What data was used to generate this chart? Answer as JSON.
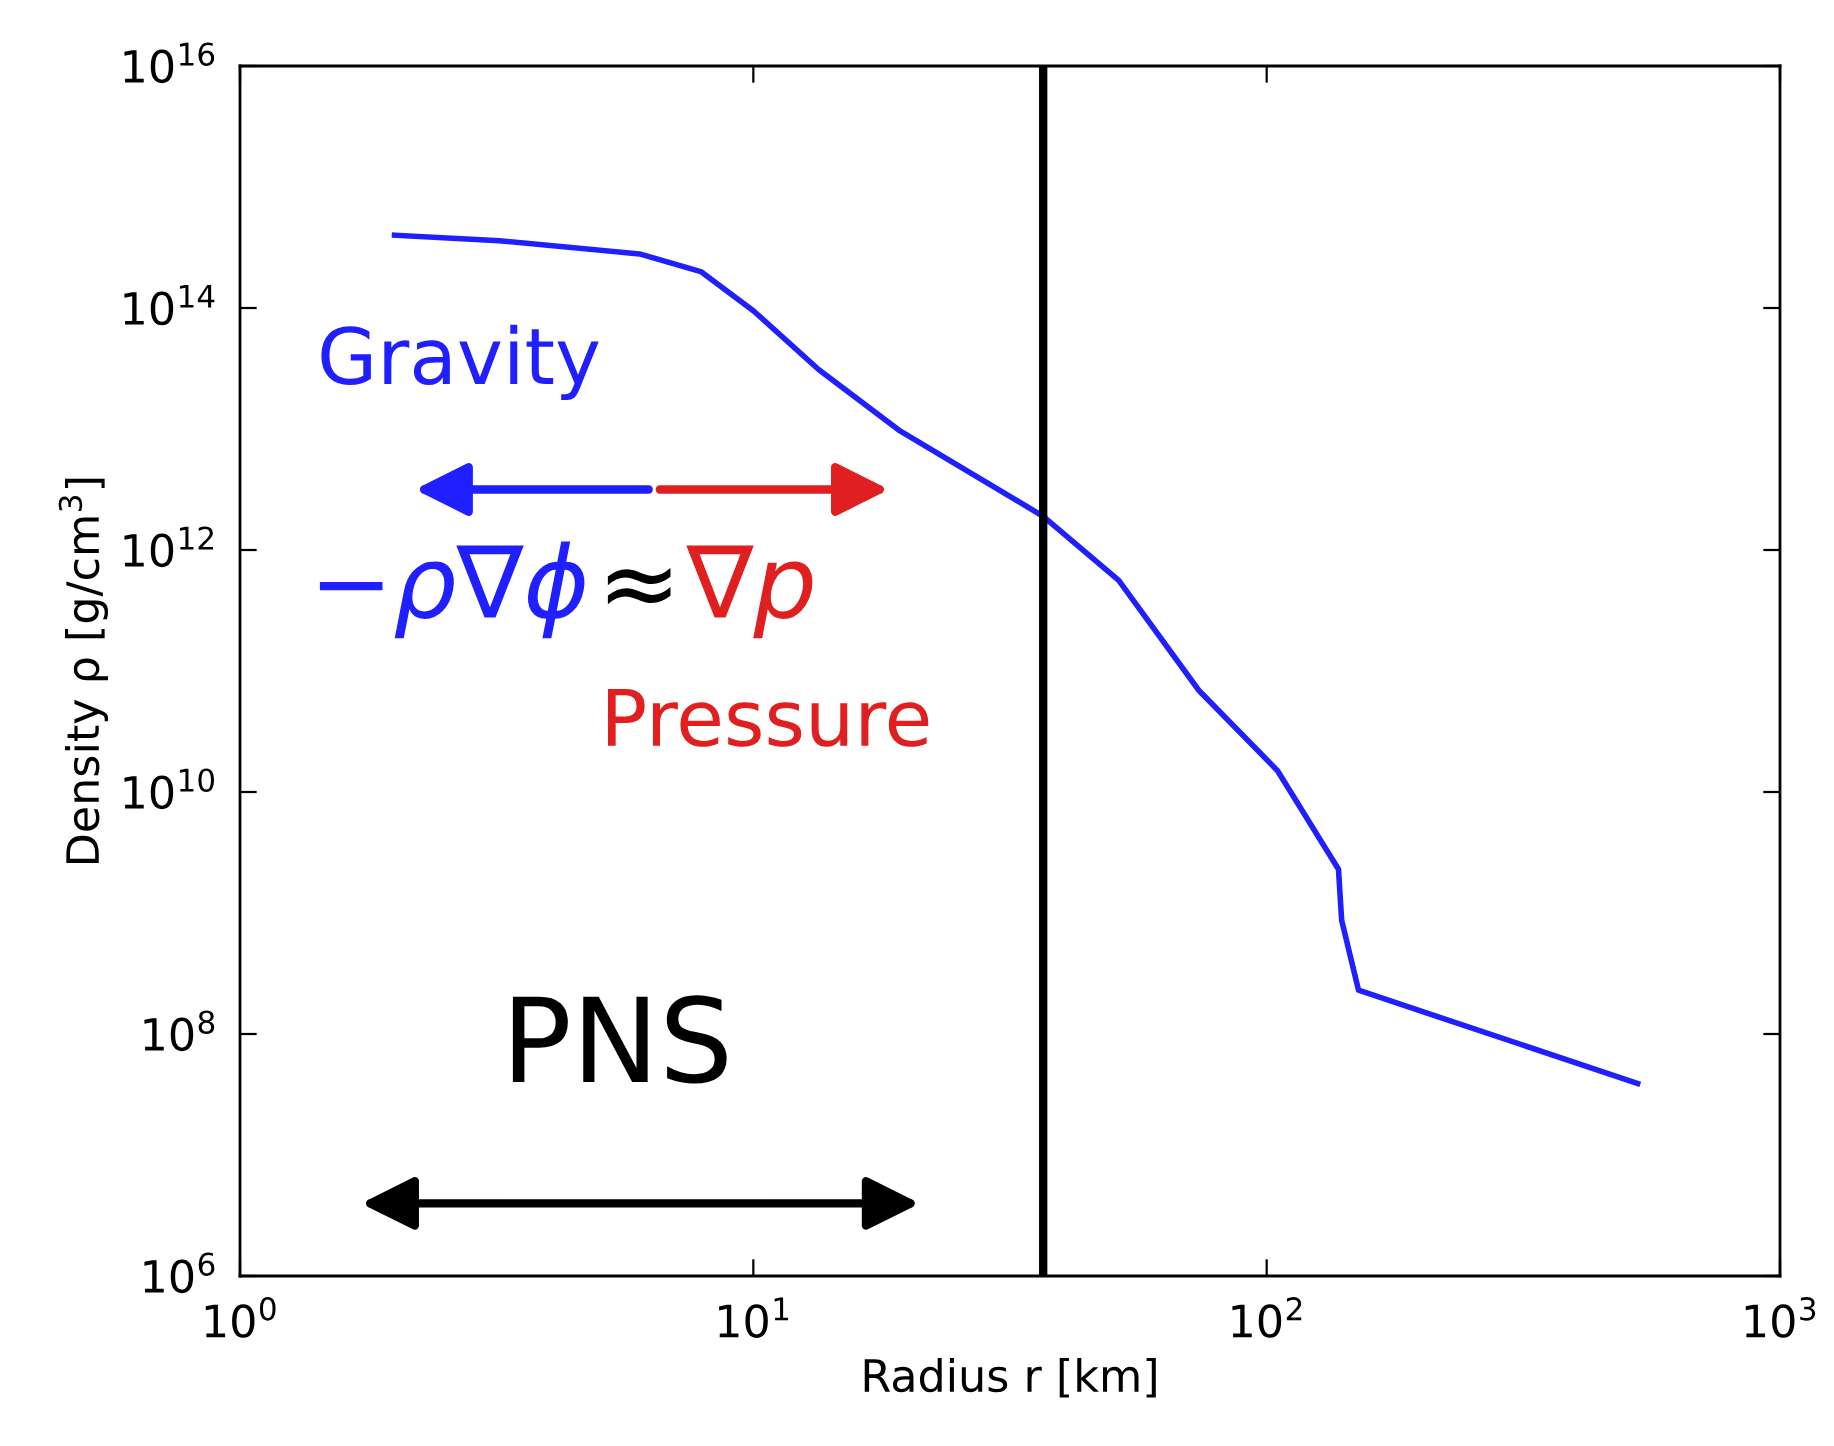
{
  "chart_data": {
    "type": "line",
    "xlabel": "Radius r [km]",
    "ylabel": "Density ρ [g/cm$^{3}$]",
    "x": [
      2.0,
      3.2,
      6.0,
      7.9,
      10,
      13.4,
      19.2,
      36.7,
      51.5,
      73.8,
      105,
      138,
      140,
      151,
      528
    ],
    "series": [
      {
        "color": "#1f1fff",
        "values": [
          400000000000000.0,
          360000000000000.0,
          280000000000000.0,
          200000000000000.0,
          95000000000000.0,
          31000000000000.0,
          9800000000000.0,
          1900000000000.0,
          560000000000.0,
          69000000000.0,
          15000000000.0,
          2300000000.0,
          870000000.0,
          230000000.0,
          39000000.0
        ]
      }
    ],
    "log": "xy",
    "xlim": [
      1,
      1000
    ],
    "ylim": [
      1000000.0,
      1e+16
    ],
    "xticks": [
      {
        "value": 1,
        "label": "10$^{0}$"
      },
      {
        "value": 10,
        "label": "10$^{1}$"
      },
      {
        "value": 100,
        "label": "10$^{2}$"
      },
      {
        "value": 1000,
        "label": "10$^{3}$"
      }
    ],
    "yticks": [
      {
        "value": 1000000.0,
        "label": "10$^{6}$"
      },
      {
        "value": 100000000.0,
        "label": "10$^{8}$"
      },
      {
        "value": 10000000000.0,
        "label": "10$^{10}$"
      },
      {
        "value": 1000000000000.0,
        "label": "10$^{12}$"
      },
      {
        "value": 100000000000000.0,
        "label": "10$^{14}$"
      },
      {
        "value": 1e+16,
        "label": "10$^{16}$"
      }
    ],
    "ref_lines": [
      {
        "axis": "x",
        "value": 36.7,
        "color": "#000000"
      }
    ],
    "annotations": [
      "Gravity",
      "−ρ∇ϕ",
      "≈",
      "∇p",
      "Pressure",
      "PNS"
    ],
    "grid": false,
    "line_style": "solid",
    "marker": "none"
  }
}
